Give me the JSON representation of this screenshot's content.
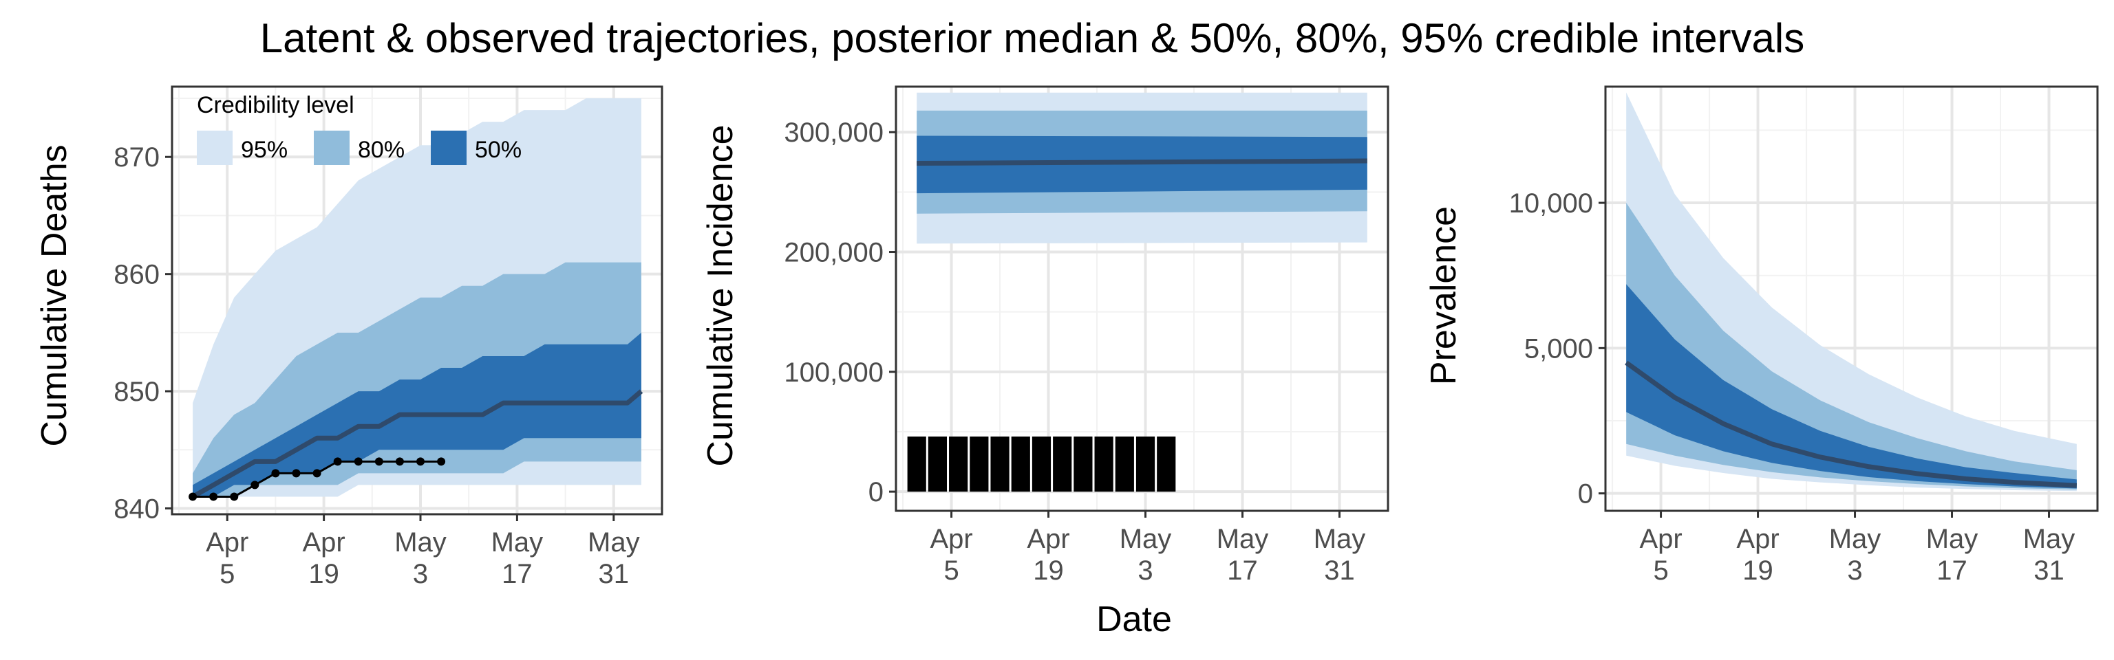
{
  "figure": {
    "title": "Latent & observed trajectories, posterior median & 50%, 80%, 95% credible intervals",
    "shared_xlabel": "Date"
  },
  "legend": {
    "title": "Credibility level",
    "items": [
      {
        "label": "95%",
        "color": "#d6e5f4"
      },
      {
        "label": "80%",
        "color": "#90bcdb"
      },
      {
        "label": "50%",
        "color": "#2b70b2"
      }
    ],
    "placement": "top-left inside panel 1"
  },
  "colors": {
    "band95": "#d6e5f4",
    "band80": "#90bcdb",
    "band50": "#2b70b2",
    "median": "#2f4a6b",
    "observed": "#000000",
    "grid_major": "#e6e6e6",
    "grid_minor": "#f2f2f2",
    "panel_border": "#333333"
  },
  "x_ticks": [
    {
      "date": "2020-04-05",
      "line1": "Apr",
      "line2": "5"
    },
    {
      "date": "2020-04-19",
      "line1": "Apr",
      "line2": "19"
    },
    {
      "date": "2020-05-03",
      "line1": "May",
      "line2": "3"
    },
    {
      "date": "2020-05-17",
      "line1": "May",
      "line2": "17"
    },
    {
      "date": "2020-05-31",
      "line1": "May",
      "line2": "31"
    }
  ],
  "chart_data": [
    {
      "type": "area",
      "ylabel": "Cumulative Deaths",
      "xlim": [
        "2020-03-28",
        "2020-06-07"
      ],
      "ylim": [
        839.5,
        876
      ],
      "yticks": [
        {
          "v": 840,
          "label": "840"
        },
        {
          "v": 850,
          "label": "850"
        },
        {
          "v": 860,
          "label": "860"
        },
        {
          "v": 870,
          "label": "870"
        }
      ],
      "grid": true,
      "x": [
        "2020-03-31",
        "2020-04-03",
        "2020-04-06",
        "2020-04-09",
        "2020-04-12",
        "2020-04-15",
        "2020-04-18",
        "2020-04-21",
        "2020-04-24",
        "2020-04-27",
        "2020-04-30",
        "2020-05-03",
        "2020-05-06",
        "2020-05-09",
        "2020-05-12",
        "2020-05-15",
        "2020-05-18",
        "2020-05-21",
        "2020-05-24",
        "2020-05-27",
        "2020-05-30",
        "2020-06-02",
        "2020-06-04"
      ],
      "q025": [
        841,
        841,
        841,
        841,
        841,
        841,
        841,
        841,
        842,
        842,
        842,
        842,
        842,
        842,
        842,
        842,
        842,
        842,
        842,
        842,
        842,
        842,
        842
      ],
      "q10": [
        841,
        841,
        841,
        842,
        842,
        842,
        842,
        842,
        843,
        843,
        843,
        843,
        843,
        843,
        843,
        843,
        844,
        844,
        844,
        844,
        844,
        844,
        844
      ],
      "q25": [
        841,
        841,
        842,
        842,
        843,
        843,
        843,
        844,
        844,
        845,
        845,
        845,
        845,
        845,
        845,
        845,
        846,
        846,
        846,
        846,
        846,
        846,
        846
      ],
      "q50": [
        841,
        842,
        843,
        844,
        844,
        845,
        846,
        846,
        847,
        847,
        848,
        848,
        848,
        848,
        848,
        849,
        849,
        849,
        849,
        849,
        849,
        849,
        850
      ],
      "q75": [
        842,
        843,
        844,
        845,
        846,
        847,
        848,
        849,
        850,
        850,
        851,
        851,
        852,
        852,
        853,
        853,
        853,
        854,
        854,
        854,
        854,
        854,
        855
      ],
      "q90": [
        843,
        846,
        848,
        849,
        851,
        853,
        854,
        855,
        855,
        856,
        857,
        858,
        858,
        859,
        859,
        860,
        860,
        860,
        861,
        861,
        861,
        861,
        861
      ],
      "q975": [
        849,
        854,
        858,
        860,
        862,
        863,
        864,
        866,
        868,
        869,
        870,
        871,
        871,
        872,
        873,
        873,
        874,
        874,
        874,
        875,
        875,
        875,
        875
      ],
      "observed": {
        "x": [
          "2020-03-31",
          "2020-04-03",
          "2020-04-06",
          "2020-04-09",
          "2020-04-12",
          "2020-04-15",
          "2020-04-18",
          "2020-04-21",
          "2020-04-24",
          "2020-04-27",
          "2020-04-30",
          "2020-05-03",
          "2020-05-06"
        ],
        "y": [
          841,
          841,
          841,
          842,
          843,
          843,
          843,
          844,
          844,
          844,
          844,
          844,
          844
        ]
      }
    },
    {
      "type": "area",
      "ylabel": "Cumulative Incidence",
      "xlim": [
        "2020-03-28",
        "2020-06-07"
      ],
      "ylim": [
        -16000,
        338000
      ],
      "yticks": [
        {
          "v": 0,
          "label": "0"
        },
        {
          "v": 100000,
          "label": "100,000"
        },
        {
          "v": 200000,
          "label": "200,000"
        },
        {
          "v": 300000,
          "label": "300,000"
        }
      ],
      "grid": true,
      "x": [
        "2020-03-31",
        "2020-06-04"
      ],
      "q025": [
        207000,
        208000
      ],
      "q10": [
        232000,
        234000
      ],
      "q25": [
        249000,
        252000
      ],
      "q50": [
        274000,
        276000
      ],
      "q75": [
        297000,
        296000
      ],
      "q90": [
        318000,
        318000
      ],
      "q975": [
        333000,
        333000
      ],
      "observed_bars": {
        "type": "bar",
        "x": [
          "2020-03-31",
          "2020-04-03",
          "2020-04-06",
          "2020-04-09",
          "2020-04-12",
          "2020-04-15",
          "2020-04-18",
          "2020-04-21",
          "2020-04-24",
          "2020-04-27",
          "2020-04-30",
          "2020-05-03",
          "2020-05-06"
        ],
        "y": [
          46000,
          46000,
          46000,
          46000,
          46000,
          46000,
          46000,
          46000,
          46000,
          46000,
          46000,
          46000,
          46000
        ]
      }
    },
    {
      "type": "area",
      "ylabel": "Prevalence",
      "xlim": [
        "2020-03-28",
        "2020-06-07"
      ],
      "ylim": [
        -600,
        14000
      ],
      "yticks": [
        {
          "v": 0,
          "label": "0"
        },
        {
          "v": 5000,
          "label": "5,000"
        },
        {
          "v": 10000,
          "label": "10,000"
        }
      ],
      "grid": true,
      "x": [
        "2020-03-31",
        "2020-04-07",
        "2020-04-14",
        "2020-04-21",
        "2020-04-28",
        "2020-05-05",
        "2020-05-12",
        "2020-05-19",
        "2020-05-26",
        "2020-06-04"
      ],
      "q025": [
        1300,
        950,
        700,
        500,
        380,
        280,
        200,
        150,
        110,
        80
      ],
      "q10": [
        1700,
        1300,
        980,
        730,
        550,
        420,
        320,
        240,
        180,
        130
      ],
      "q25": [
        2800,
        2000,
        1450,
        1050,
        770,
        560,
        420,
        320,
        240,
        170
      ],
      "q50": [
        4500,
        3300,
        2400,
        1700,
        1250,
        920,
        680,
        500,
        380,
        270
      ],
      "q75": [
        7200,
        5300,
        3900,
        2900,
        2150,
        1600,
        1200,
        900,
        700,
        480
      ],
      "q90": [
        10000,
        7500,
        5600,
        4200,
        3200,
        2450,
        1900,
        1450,
        1100,
        800
      ],
      "q975": [
        13800,
        10300,
        8100,
        6400,
        5100,
        4100,
        3300,
        2650,
        2150,
        1700
      ]
    }
  ]
}
